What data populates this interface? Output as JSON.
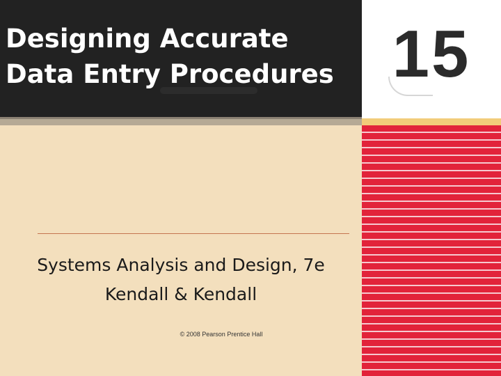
{
  "slide": {
    "title_line1": "Designing Accurate",
    "title_line2": "Data Entry Procedures",
    "chapter_number": "15",
    "subtitle_line1": "Systems Analysis and Design, 7e",
    "subtitle_line2": "Kendall & Kendall",
    "copyright": "© 2008 Pearson Prentice Hall"
  },
  "colors": {
    "title_background": "#222222",
    "page_background": "#f3dfbd",
    "stripe_red": "#e2233a",
    "divider": "#c4754f"
  }
}
